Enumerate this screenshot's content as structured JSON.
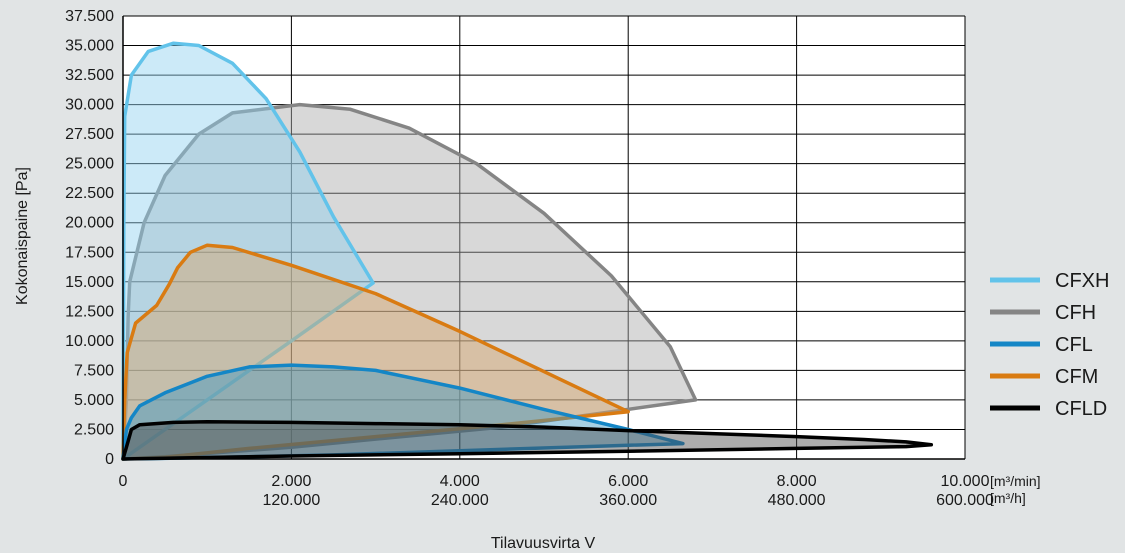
{
  "chart_data": {
    "type": "area",
    "xlabel": "Tilavuusvirta V",
    "ylabel": "Kokonaispaine [Pa]",
    "xlim": [
      0,
      10000
    ],
    "ylim": [
      0,
      37500
    ],
    "x_ticks": [
      0,
      2000,
      4000,
      6000,
      8000,
      10000
    ],
    "x_tick_labels": [
      "0",
      "2.000",
      "4.000",
      "6.000",
      "8.000",
      "10.000"
    ],
    "x_tick_labels_2": [
      "",
      "120.000",
      "240.000",
      "360.000",
      "480.000",
      "600.000"
    ],
    "x_units": [
      "[m³/min]",
      "[m³/h]"
    ],
    "y_ticks": [
      0,
      2500,
      5000,
      7500,
      10000,
      12500,
      15000,
      17500,
      20000,
      22500,
      25000,
      27500,
      30000,
      32500,
      35000,
      37500
    ],
    "y_tick_labels": [
      "0",
      "2.500",
      "5.000",
      "7.500",
      "10.000",
      "12.500",
      "15.000",
      "17.500",
      "20.000",
      "22.500",
      "25.000",
      "27.500",
      "30.000",
      "32.500",
      "35.000",
      "37.500"
    ],
    "grid": true,
    "legend_position": "right",
    "series": [
      {
        "name": "CFH",
        "color": "#858585",
        "fill": "#a8a8a8",
        "points": [
          [
            0,
            0
          ],
          [
            40,
            5000
          ],
          [
            60,
            12000
          ],
          [
            80,
            15000
          ],
          [
            250,
            20000
          ],
          [
            500,
            24000
          ],
          [
            900,
            27500
          ],
          [
            1300,
            29300
          ],
          [
            2100,
            30000
          ],
          [
            2700,
            29600
          ],
          [
            3400,
            28000
          ],
          [
            4200,
            25000
          ],
          [
            5000,
            20800
          ],
          [
            5800,
            15500
          ],
          [
            6500,
            9500
          ],
          [
            6800,
            5000
          ],
          [
            4500,
            2700
          ],
          [
            2000,
            1000
          ],
          [
            500,
            200
          ],
          [
            0,
            0
          ]
        ]
      },
      {
        "name": "CFXH",
        "color": "#62c3ea",
        "fill": "#8fd0ef",
        "points": [
          [
            0,
            0
          ],
          [
            10,
            20000
          ],
          [
            20,
            29000
          ],
          [
            100,
            32500
          ],
          [
            300,
            34500
          ],
          [
            600,
            35200
          ],
          [
            900,
            35000
          ],
          [
            1300,
            33500
          ],
          [
            1700,
            30500
          ],
          [
            2100,
            26000
          ],
          [
            2500,
            20500
          ],
          [
            2970,
            14900
          ],
          [
            2000,
            10000
          ],
          [
            1000,
            5000
          ],
          [
            200,
            1000
          ],
          [
            0,
            0
          ]
        ]
      },
      {
        "name": "CFM",
        "color": "#d97b12",
        "fill": "#d6a568",
        "points": [
          [
            0,
            0
          ],
          [
            20,
            5000
          ],
          [
            50,
            9000
          ],
          [
            150,
            11500
          ],
          [
            400,
            13000
          ],
          [
            550,
            14800
          ],
          [
            650,
            16200
          ],
          [
            800,
            17500
          ],
          [
            1000,
            18100
          ],
          [
            1300,
            17900
          ],
          [
            2000,
            16400
          ],
          [
            3000,
            14000
          ],
          [
            4000,
            10800
          ],
          [
            5000,
            7400
          ],
          [
            6000,
            4000
          ],
          [
            4500,
            2900
          ],
          [
            3000,
            1900
          ],
          [
            1500,
            900
          ],
          [
            500,
            150
          ],
          [
            0,
            0
          ]
        ]
      },
      {
        "name": "CFL",
        "color": "#1486c6",
        "fill": "#3b97c4",
        "points": [
          [
            0,
            0
          ],
          [
            40,
            2500
          ],
          [
            100,
            3500
          ],
          [
            200,
            4500
          ],
          [
            500,
            5600
          ],
          [
            1000,
            7000
          ],
          [
            1500,
            7800
          ],
          [
            2000,
            7950
          ],
          [
            2500,
            7800
          ],
          [
            3000,
            7500
          ],
          [
            4000,
            6000
          ],
          [
            5000,
            4200
          ],
          [
            6000,
            2500
          ],
          [
            6650,
            1300
          ],
          [
            5500,
            1050
          ],
          [
            4000,
            700
          ],
          [
            2500,
            350
          ],
          [
            1000,
            120
          ],
          [
            300,
            30
          ],
          [
            0,
            0
          ]
        ]
      },
      {
        "name": "CFLD",
        "color": "#000000",
        "fill": "#4a4a4a",
        "points": [
          [
            0,
            0
          ],
          [
            60,
            1500
          ],
          [
            100,
            2500
          ],
          [
            200,
            2900
          ],
          [
            600,
            3100
          ],
          [
            1000,
            3150
          ],
          [
            2000,
            3100
          ],
          [
            3000,
            3000
          ],
          [
            4000,
            2900
          ],
          [
            5000,
            2700
          ],
          [
            6000,
            2400
          ],
          [
            7000,
            2150
          ],
          [
            8000,
            1900
          ],
          [
            8800,
            1650
          ],
          [
            9300,
            1450
          ],
          [
            9600,
            1200
          ],
          [
            9300,
            1050
          ],
          [
            8000,
            900
          ],
          [
            6000,
            650
          ],
          [
            4000,
            450
          ],
          [
            2000,
            250
          ],
          [
            500,
            60
          ],
          [
            0,
            0
          ]
        ]
      }
    ],
    "legend_order": [
      "CFXH",
      "CFH",
      "CFL",
      "CFM",
      "CFLD"
    ]
  }
}
